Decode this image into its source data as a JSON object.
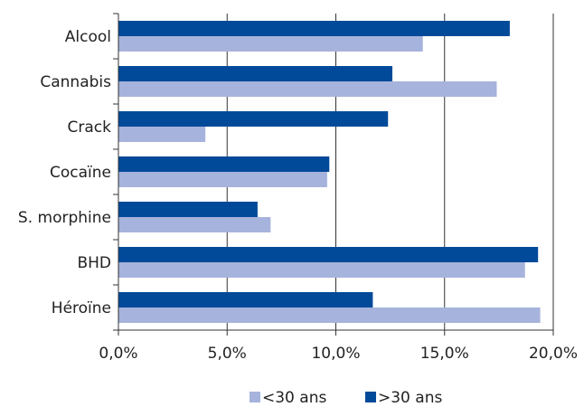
{
  "chart_data": {
    "type": "bar",
    "orientation": "horizontal",
    "categories": [
      "Alcool",
      "Cannabis",
      "Crack",
      "Cocaïne",
      "S. morphine",
      "BHD",
      "Héroïne"
    ],
    "series": [
      {
        "name": ">30 ans",
        "color": "#004a99",
        "values": [
          18.0,
          12.6,
          12.4,
          9.7,
          6.4,
          19.3,
          11.7
        ]
      },
      {
        "name": "<30 ans",
        "color": "#a6b3dc",
        "values": [
          14.0,
          17.4,
          4.0,
          9.6,
          7.0,
          18.7,
          19.4
        ]
      }
    ],
    "xlim": [
      0,
      20
    ],
    "xticks": [
      "0,0%",
      "5,0%",
      "10,0%",
      "15,0%",
      "20,0%"
    ],
    "xtick_values": [
      0,
      5,
      10,
      15,
      20
    ],
    "grid": "vertical",
    "legend": {
      "placement": "bottom",
      "order": [
        "<30 ans",
        ">30 ans"
      ]
    }
  }
}
